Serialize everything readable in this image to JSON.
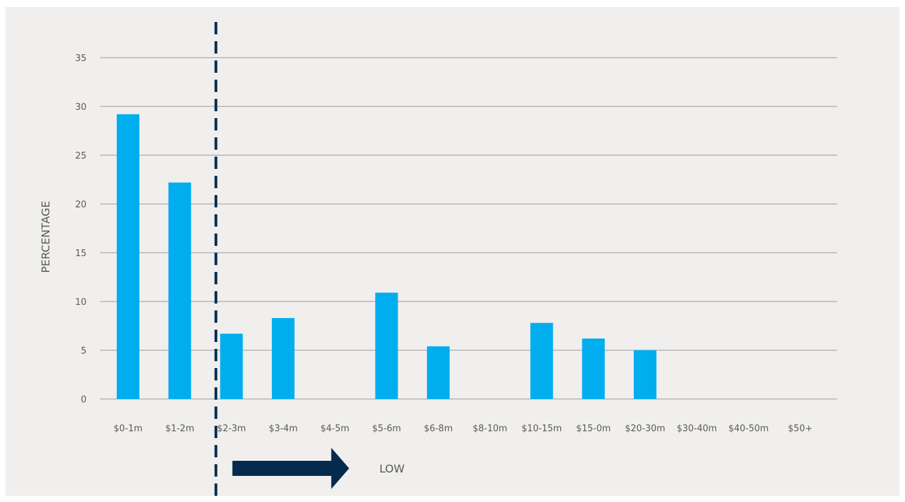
{
  "chart_data": {
    "type": "bar",
    "title": "",
    "xlabel": "",
    "ylabel": "PERCENTAGE",
    "ylim": [
      0,
      35
    ],
    "yticks": [
      0,
      5,
      10,
      15,
      20,
      25,
      30,
      35
    ],
    "grid": true,
    "categories": [
      "$0-1m",
      "$1-2m",
      "$2-3m",
      "$3-4m",
      "$4-5m",
      "$5-6m",
      "$6-8m",
      "$8-10m",
      "$10-15m",
      "$15-0m",
      "$20-30m",
      "$30-40m",
      "$40-50m",
      "$50+"
    ],
    "values": [
      29.2,
      22.2,
      6.7,
      8.3,
      0,
      10.9,
      5.4,
      0,
      7.8,
      6.2,
      5.0,
      0,
      0,
      0
    ],
    "threshold_after_category": "$1-2m",
    "annotation": {
      "text": "LOW"
    },
    "colors": {
      "bar": "#00adef",
      "grid": "#9a9a9a",
      "threshold": "#062a4d",
      "arrow": "#062a4d",
      "background": "#f0efed"
    }
  }
}
